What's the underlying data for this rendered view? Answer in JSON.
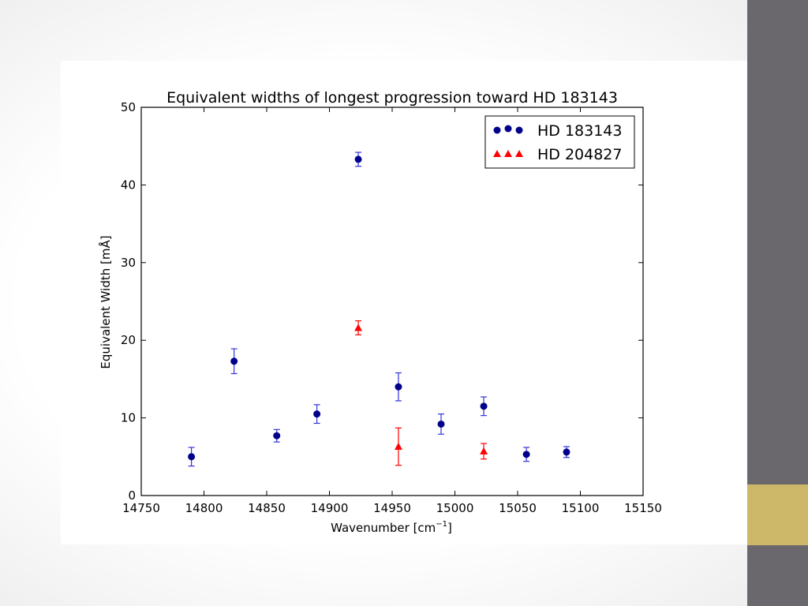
{
  "chart_data": {
    "type": "scatter",
    "title": "Equivalent widths of longest progression toward HD 183143",
    "xlabel": "Wavenumber [cm",
    "xlabel_sup": "−1",
    "xlabel_close": "]",
    "ylabel": "Equivalent Width [mÅ]",
    "xlim": [
      14750,
      15150
    ],
    "ylim": [
      0,
      50
    ],
    "xticks": [
      "14750",
      "14800",
      "14850",
      "14900",
      "14950",
      "15000",
      "15050",
      "15100",
      "15150"
    ],
    "yticks": [
      "0",
      "10",
      "20",
      "30",
      "40",
      "50"
    ],
    "grid": false,
    "legend_position": "top-right",
    "series": [
      {
        "name": "HD 183143",
        "marker": "circle",
        "color": "#00008b",
        "error_color": "#3333dd",
        "points": [
          {
            "x": 14790,
            "y": 5.0,
            "err": 1.2
          },
          {
            "x": 14824,
            "y": 17.3,
            "err": 1.6
          },
          {
            "x": 14858,
            "y": 7.7,
            "err": 0.8
          },
          {
            "x": 14890,
            "y": 10.5,
            "err": 1.2
          },
          {
            "x": 14923,
            "y": 43.3,
            "err": 0.9
          },
          {
            "x": 14955,
            "y": 14.0,
            "err": 1.8
          },
          {
            "x": 14989,
            "y": 9.2,
            "err": 1.3
          },
          {
            "x": 15023,
            "y": 11.5,
            "err": 1.2
          },
          {
            "x": 15057,
            "y": 5.3,
            "err": 0.9
          },
          {
            "x": 15089,
            "y": 5.6,
            "err": 0.7
          }
        ]
      },
      {
        "name": "HD 204827",
        "marker": "triangle",
        "color": "#ff0000",
        "error_color": "#ff0000",
        "points": [
          {
            "x": 14923,
            "y": 21.6,
            "err": 0.9
          },
          {
            "x": 14955,
            "y": 6.3,
            "err": 2.4
          },
          {
            "x": 15023,
            "y": 5.7,
            "err": 1.0
          }
        ]
      }
    ]
  },
  "colors": {
    "sidebar": "#6b686d",
    "sidebar_accent": "#cdb768"
  }
}
